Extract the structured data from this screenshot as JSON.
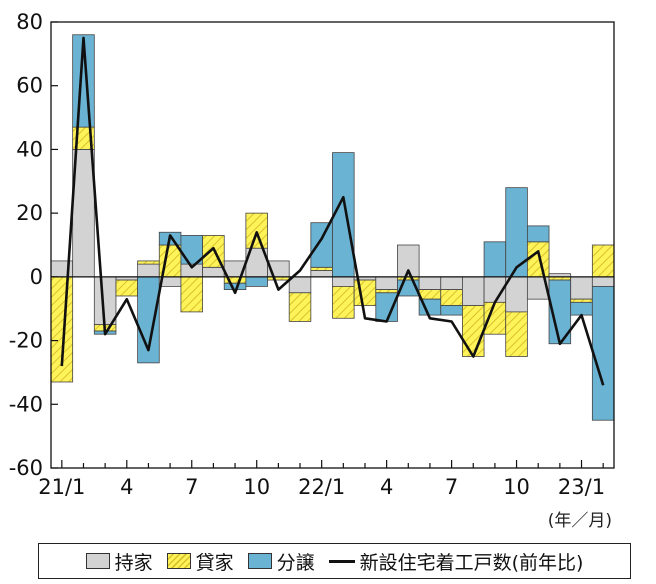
{
  "chart_data": {
    "type": "bar",
    "stacked": true,
    "x": [
      "21/1",
      "2",
      "3",
      "4",
      "5",
      "6",
      "7",
      "8",
      "9",
      "10",
      "11",
      "12",
      "22/1",
      "2",
      "3",
      "4",
      "5",
      "6",
      "7",
      "8",
      "9",
      "10",
      "11",
      "12",
      "23/1",
      "2"
    ],
    "x_tick_labels": [
      "21/1",
      "4",
      "7",
      "10",
      "22/1",
      "4",
      "7",
      "10",
      "23/1"
    ],
    "x_unit": "(年／月)",
    "ylim": [
      -60,
      80
    ],
    "yticks": [
      -60,
      -40,
      -20,
      0,
      20,
      40,
      60,
      80
    ],
    "series": [
      {
        "name": "持家",
        "type": "bar",
        "color": "#d3d3d3",
        "values": [
          5,
          40,
          -15,
          -1,
          4,
          -3,
          4,
          3,
          5,
          9,
          5,
          -5,
          2,
          -3,
          -1,
          -4,
          10,
          -4,
          -4,
          -9,
          -8,
          -11,
          -7,
          1,
          -7,
          -3
        ]
      },
      {
        "name": "貸家",
        "type": "bar",
        "color": "#fff35a",
        "values": [
          -33,
          7,
          -2,
          -5,
          1,
          10,
          -11,
          10,
          -2,
          11,
          -1,
          -9,
          1,
          -10,
          -8,
          -1,
          -1,
          -3,
          -5,
          -16,
          -10,
          -14,
          11,
          -1,
          -1,
          10
        ]
      },
      {
        "name": "分譲",
        "type": "bar",
        "color": "#6ab3d3",
        "values": [
          0,
          29,
          -1,
          0,
          -27,
          4,
          9,
          0,
          -2,
          -3,
          0,
          0,
          14,
          39,
          0,
          -9,
          -5,
          -5,
          -3,
          0,
          11,
          28,
          5,
          -20,
          -4,
          -42
        ]
      },
      {
        "name": "新設住宅着工戸数(前年比)",
        "type": "line",
        "color": "#111111",
        "values": [
          -28,
          75,
          -18,
          -7,
          -23,
          13,
          3,
          9,
          -5,
          14,
          -4,
          2,
          12,
          25,
          -13,
          -14,
          2,
          -13,
          -14,
          -25,
          -8,
          3,
          8,
          -21,
          -12,
          -34
        ]
      }
    ]
  }
}
